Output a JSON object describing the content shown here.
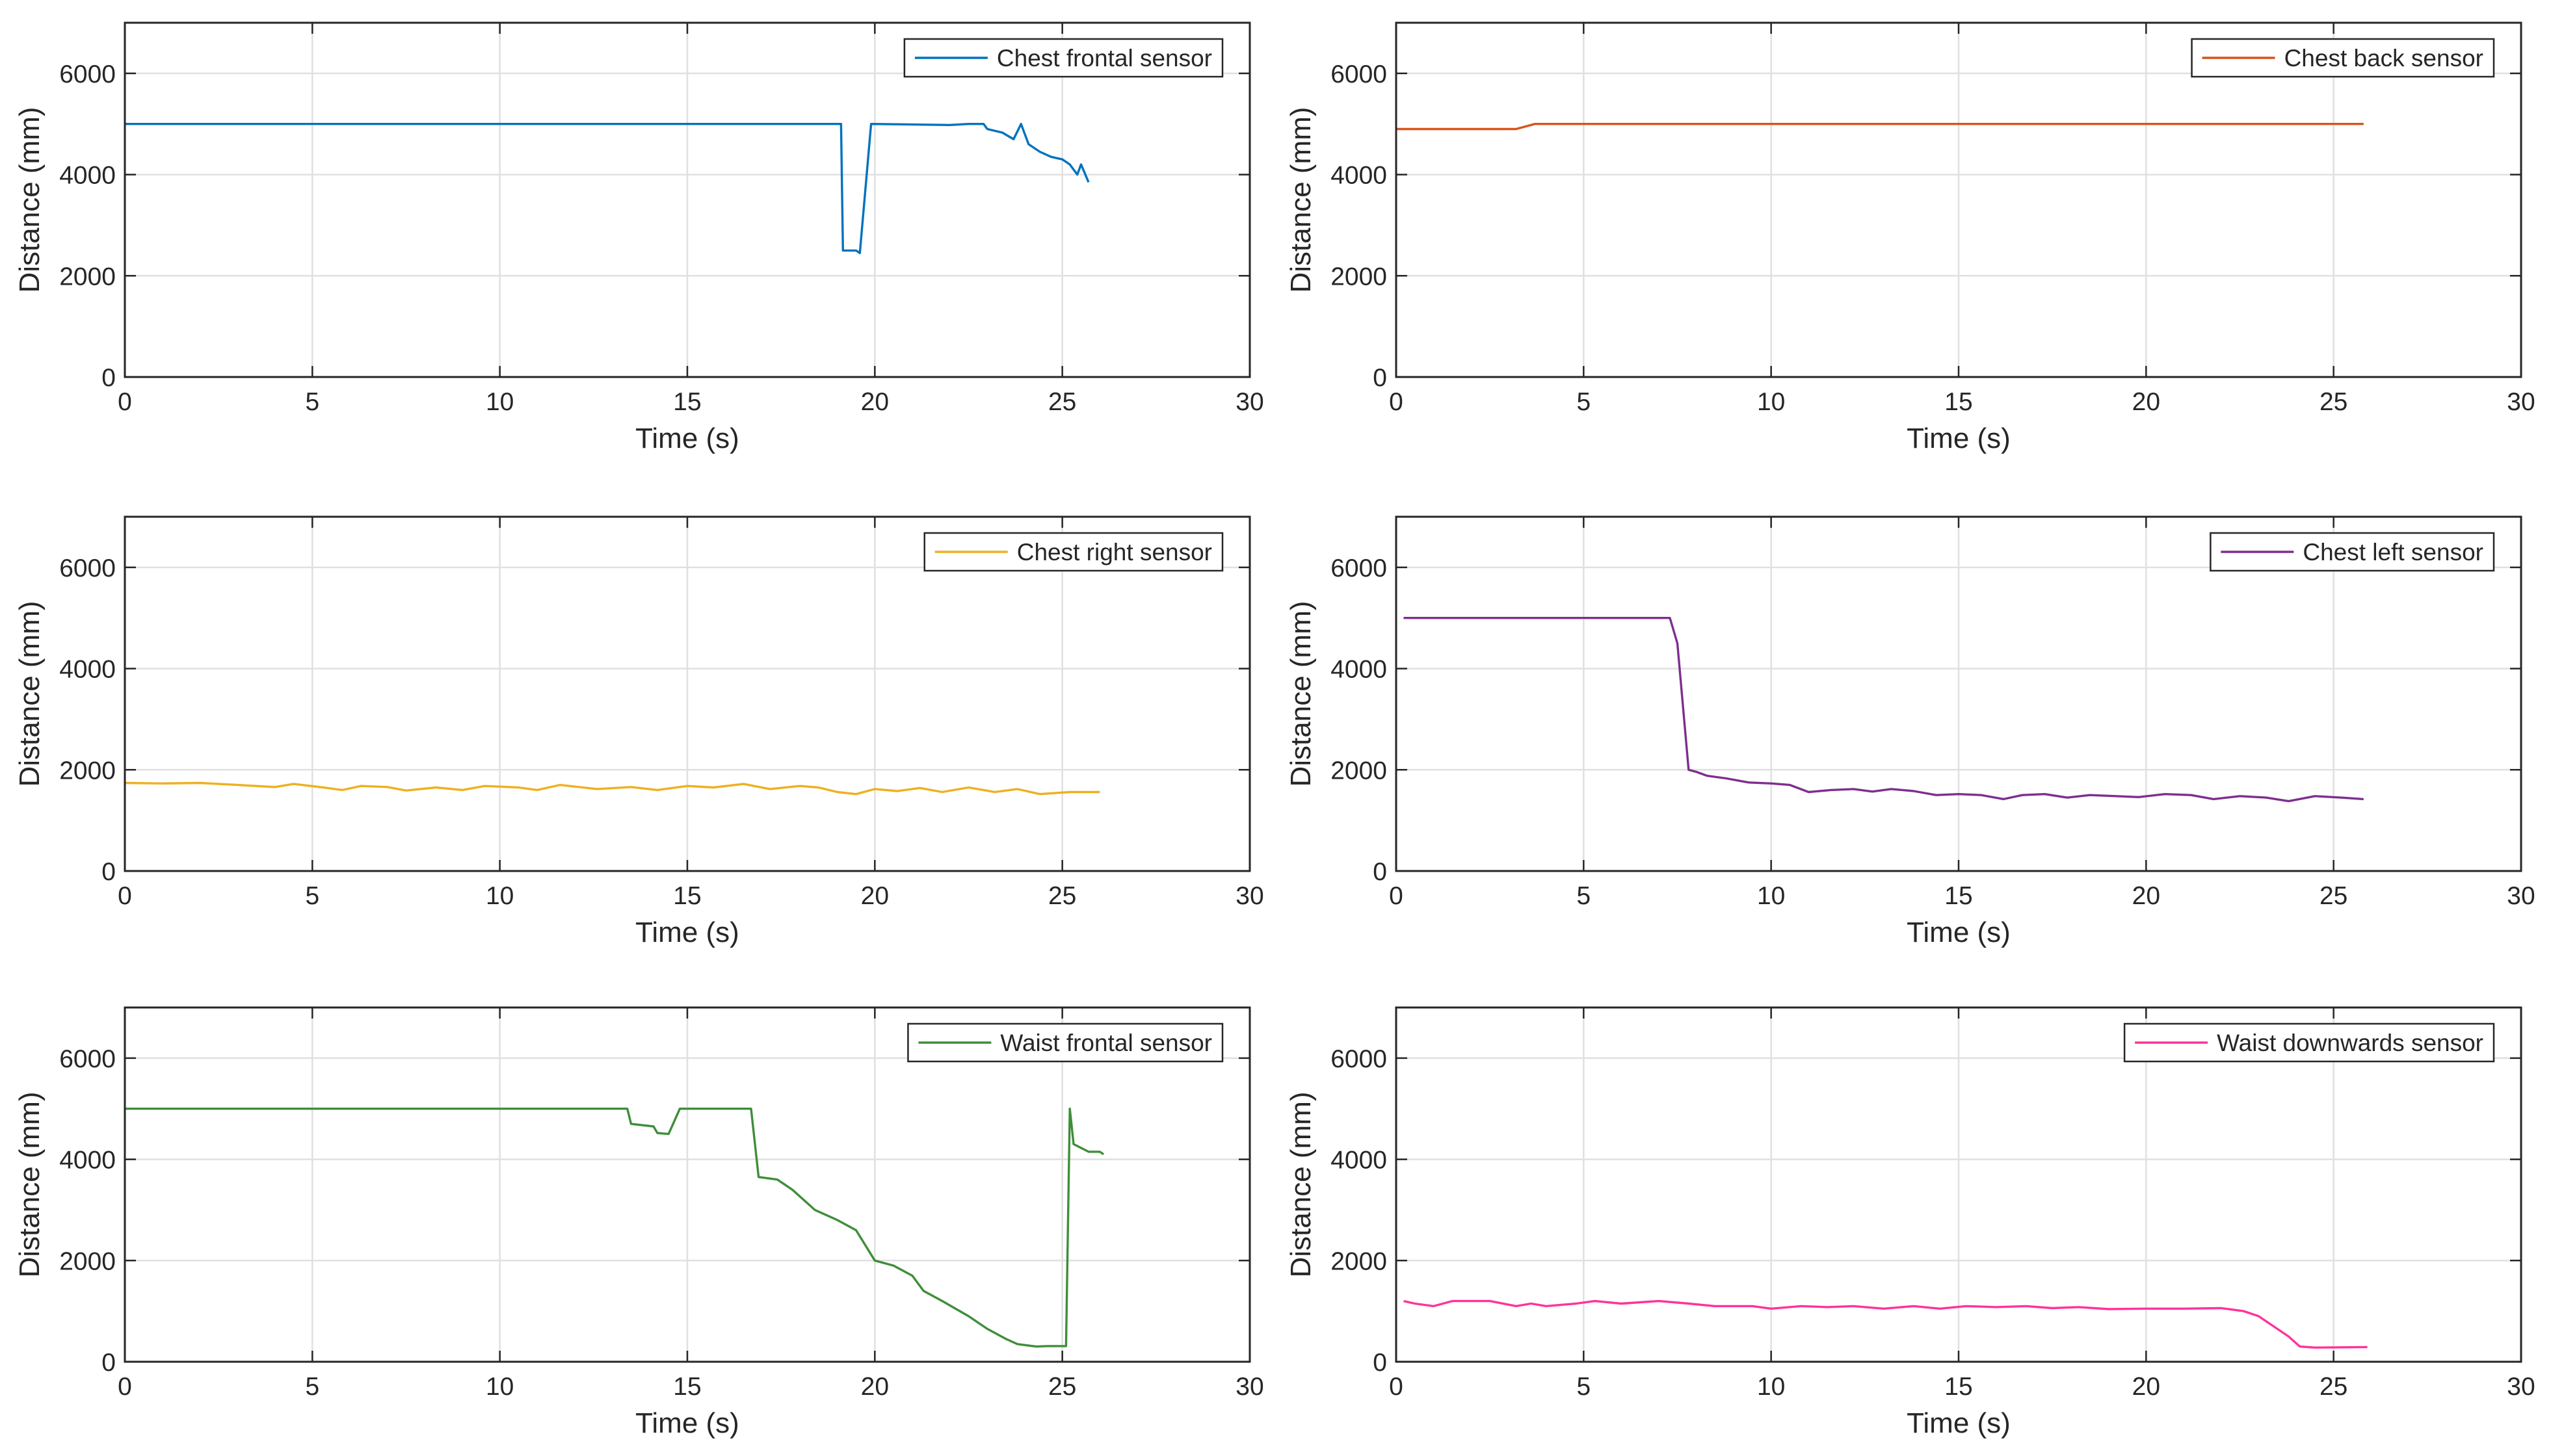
{
  "chart_data": [
    {
      "type": "line",
      "xlabel": "Time (s)",
      "ylabel": "Distance (mm)",
      "xlim": [
        0,
        30
      ],
      "ylim": [
        0,
        7000
      ],
      "xticks": [
        0,
        5,
        10,
        15,
        20,
        25,
        30
      ],
      "yticks": [
        0,
        2000,
        4000,
        6000
      ],
      "grid": true,
      "legend_position": "top-right",
      "series": [
        {
          "name": "Chest frontal sensor",
          "color": "#0072BD",
          "points": [
            [
              0,
              5000
            ],
            [
              19.1,
              5000
            ],
            [
              19.15,
              2500
            ],
            [
              19.5,
              2500
            ],
            [
              19.6,
              2450
            ],
            [
              19.9,
              5000
            ],
            [
              22.0,
              4980
            ],
            [
              22.5,
              5000
            ],
            [
              22.9,
              5000
            ],
            [
              23.0,
              4900
            ],
            [
              23.4,
              4830
            ],
            [
              23.7,
              4700
            ],
            [
              23.9,
              5000
            ],
            [
              24.1,
              4600
            ],
            [
              24.4,
              4450
            ],
            [
              24.7,
              4350
            ],
            [
              25.0,
              4300
            ],
            [
              25.2,
              4200
            ],
            [
              25.4,
              4000
            ],
            [
              25.5,
              4200
            ],
            [
              25.7,
              3850
            ]
          ]
        },
        {
          "name": "Chest back sensor",
          "color": "#D95319",
          "points": [
            [
              0,
              4900
            ],
            [
              3.2,
              4900
            ],
            [
              3.7,
              5000
            ],
            [
              25.8,
              5000
            ]
          ]
        }
      ]
    },
    {
      "type": "line",
      "xlabel": "Time (s)",
      "ylabel": "Distance (mm)",
      "xlim": [
        0,
        30
      ],
      "ylim": [
        0,
        7000
      ],
      "xticks": [
        0,
        5,
        10,
        15,
        20,
        25,
        30
      ],
      "yticks": [
        0,
        2000,
        4000,
        6000
      ],
      "grid": true,
      "legend_position": "top-right",
      "series": [
        {
          "name": "Chest right sensor",
          "color": "#EDB120",
          "points": [
            [
              0,
              1740
            ],
            [
              1,
              1730
            ],
            [
              2,
              1740
            ],
            [
              3,
              1700
            ],
            [
              4,
              1660
            ],
            [
              4.5,
              1720
            ],
            [
              5.3,
              1650
            ],
            [
              5.8,
              1600
            ],
            [
              6.3,
              1680
            ],
            [
              7,
              1660
            ],
            [
              7.5,
              1590
            ],
            [
              8.3,
              1650
            ],
            [
              9,
              1600
            ],
            [
              9.6,
              1680
            ],
            [
              10.5,
              1650
            ],
            [
              11,
              1600
            ],
            [
              11.6,
              1700
            ],
            [
              12.6,
              1620
            ],
            [
              13.5,
              1660
            ],
            [
              14.2,
              1600
            ],
            [
              15,
              1680
            ],
            [
              15.7,
              1650
            ],
            [
              16.5,
              1720
            ],
            [
              17.2,
              1620
            ],
            [
              18,
              1680
            ],
            [
              18.5,
              1650
            ],
            [
              19,
              1560
            ],
            [
              19.5,
              1520
            ],
            [
              20,
              1620
            ],
            [
              20.6,
              1580
            ],
            [
              21.2,
              1640
            ],
            [
              21.8,
              1560
            ],
            [
              22.5,
              1650
            ],
            [
              23.2,
              1560
            ],
            [
              23.8,
              1620
            ],
            [
              24.4,
              1520
            ],
            [
              25.2,
              1560
            ],
            [
              26,
              1560
            ]
          ]
        },
        {
          "name": "Chest left sensor",
          "color": "#7E2F8E",
          "points": [
            [
              0.2,
              5000
            ],
            [
              7.3,
              5000
            ],
            [
              7.5,
              4500
            ],
            [
              7.8,
              2000
            ],
            [
              8,
              1960
            ],
            [
              8.3,
              1880
            ],
            [
              8.8,
              1830
            ],
            [
              9.4,
              1750
            ],
            [
              10,
              1730
            ],
            [
              10.5,
              1700
            ],
            [
              11,
              1560
            ],
            [
              11.6,
              1600
            ],
            [
              12.2,
              1620
            ],
            [
              12.7,
              1570
            ],
            [
              13.2,
              1620
            ],
            [
              13.8,
              1580
            ],
            [
              14.4,
              1500
            ],
            [
              15,
              1520
            ],
            [
              15.6,
              1500
            ],
            [
              16.2,
              1420
            ],
            [
              16.7,
              1500
            ],
            [
              17.3,
              1520
            ],
            [
              17.9,
              1450
            ],
            [
              18.5,
              1500
            ],
            [
              19.2,
              1480
            ],
            [
              19.8,
              1460
            ],
            [
              20.5,
              1520
            ],
            [
              21.2,
              1500
            ],
            [
              21.8,
              1420
            ],
            [
              22.5,
              1480
            ],
            [
              23.2,
              1450
            ],
            [
              23.8,
              1380
            ],
            [
              24.5,
              1480
            ],
            [
              25.2,
              1450
            ],
            [
              25.8,
              1420
            ]
          ]
        }
      ]
    },
    {
      "type": "line",
      "xlabel": "Time (s)",
      "ylabel": "Distance (mm)",
      "xlim": [
        0,
        30
      ],
      "ylim": [
        0,
        7000
      ],
      "xticks": [
        0,
        5,
        10,
        15,
        20,
        25,
        30
      ],
      "yticks": [
        0,
        2000,
        4000,
        6000
      ],
      "grid": true,
      "legend_position": "top-right",
      "series": [
        {
          "name": "Waist frontal sensor",
          "color": "#3E8E3A",
          "points": [
            [
              0,
              5000
            ],
            [
              13.4,
              5000
            ],
            [
              13.5,
              4700
            ],
            [
              14.1,
              4650
            ],
            [
              14.2,
              4520
            ],
            [
              14.5,
              4500
            ],
            [
              14.8,
              5000
            ],
            [
              16.7,
              5000
            ],
            [
              16.9,
              3650
            ],
            [
              17.4,
              3600
            ],
            [
              17.8,
              3400
            ],
            [
              18.4,
              3000
            ],
            [
              19,
              2800
            ],
            [
              19.5,
              2600
            ],
            [
              20,
              2000
            ],
            [
              20.5,
              1900
            ],
            [
              21,
              1700
            ],
            [
              21.3,
              1400
            ],
            [
              21.8,
              1200
            ],
            [
              22.5,
              900
            ],
            [
              23,
              650
            ],
            [
              23.5,
              450
            ],
            [
              23.8,
              350
            ],
            [
              24.3,
              300
            ],
            [
              24.6,
              310
            ],
            [
              25.1,
              310
            ],
            [
              25.2,
              5000
            ],
            [
              25.3,
              4300
            ],
            [
              25.7,
              4150
            ],
            [
              26,
              4150
            ],
            [
              26.1,
              4100
            ]
          ]
        },
        {
          "name": "Waist downwards sensor",
          "color": "#FF3399",
          "points": [
            [
              0.2,
              1200
            ],
            [
              0.5,
              1150
            ],
            [
              1,
              1100
            ],
            [
              1.5,
              1200
            ],
            [
              2.5,
              1200
            ],
            [
              3.2,
              1100
            ],
            [
              3.6,
              1150
            ],
            [
              4,
              1100
            ],
            [
              4.8,
              1150
            ],
            [
              5.3,
              1200
            ],
            [
              6,
              1150
            ],
            [
              7,
              1200
            ],
            [
              7.8,
              1150
            ],
            [
              8.5,
              1100
            ],
            [
              9.5,
              1100
            ],
            [
              10,
              1050
            ],
            [
              10.8,
              1100
            ],
            [
              11.5,
              1080
            ],
            [
              12.2,
              1100
            ],
            [
              13,
              1050
            ],
            [
              13.8,
              1100
            ],
            [
              14.5,
              1050
            ],
            [
              15.2,
              1100
            ],
            [
              16,
              1080
            ],
            [
              16.8,
              1100
            ],
            [
              17.5,
              1060
            ],
            [
              18.2,
              1080
            ],
            [
              19,
              1040
            ],
            [
              20,
              1050
            ],
            [
              21,
              1050
            ],
            [
              22,
              1060
            ],
            [
              22.6,
              1000
            ],
            [
              23,
              900
            ],
            [
              23.4,
              700
            ],
            [
              23.8,
              500
            ],
            [
              24.1,
              300
            ],
            [
              24.5,
              280
            ],
            [
              25.9,
              290
            ]
          ]
        }
      ]
    }
  ]
}
